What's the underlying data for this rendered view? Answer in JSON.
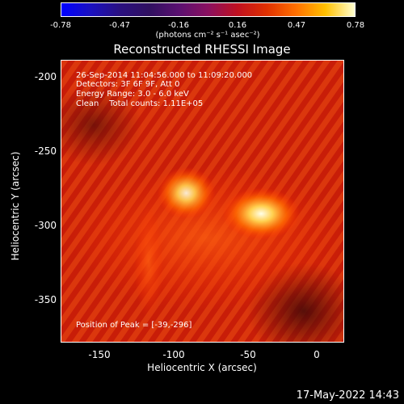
{
  "colorbar": {
    "ticks": [
      "-0.78",
      "-0.47",
      "-0.16",
      "0.16",
      "0.47",
      "0.78"
    ],
    "unit": "(photons cm⁻² s⁻¹ asec⁻²)"
  },
  "title": "Reconstructed RHESSI Image",
  "info": {
    "time": "26-Sep-2014 11:04:56.000 to 11:09:20.000",
    "detectors": "Detectors: 3F 6F 9F, Att 0",
    "energy": "Energy Range: 3.0 - 6.0 keV",
    "method": "Clean    Total counts: 1.11E+05",
    "peak": "Position of Peak = [-39,-296]"
  },
  "axes": {
    "xlabel": "Heliocentric X (arcsec)",
    "ylabel": "Heliocentric Y (arcsec)",
    "xticks": [
      "-150",
      "-100",
      "-50",
      "0"
    ],
    "yticks": [
      "-200",
      "-250",
      "-300",
      "-350"
    ]
  },
  "timestamp": "17-May-2022 14:43",
  "chart_data": {
    "type": "heatmap",
    "title": "Reconstructed RHESSI Image",
    "xlabel": "Heliocentric X (arcsec)",
    "ylabel": "Heliocentric Y (arcsec)",
    "xlim": [
      -175,
      17
    ],
    "ylim": [
      -383,
      -192
    ],
    "colorbar_range": [
      -0.78,
      0.78
    ],
    "sources": [
      {
        "x": -90,
        "y": -282,
        "relative_intensity": 0.9
      },
      {
        "x": -39,
        "y": -296,
        "relative_intensity": 1.0
      }
    ]
  }
}
